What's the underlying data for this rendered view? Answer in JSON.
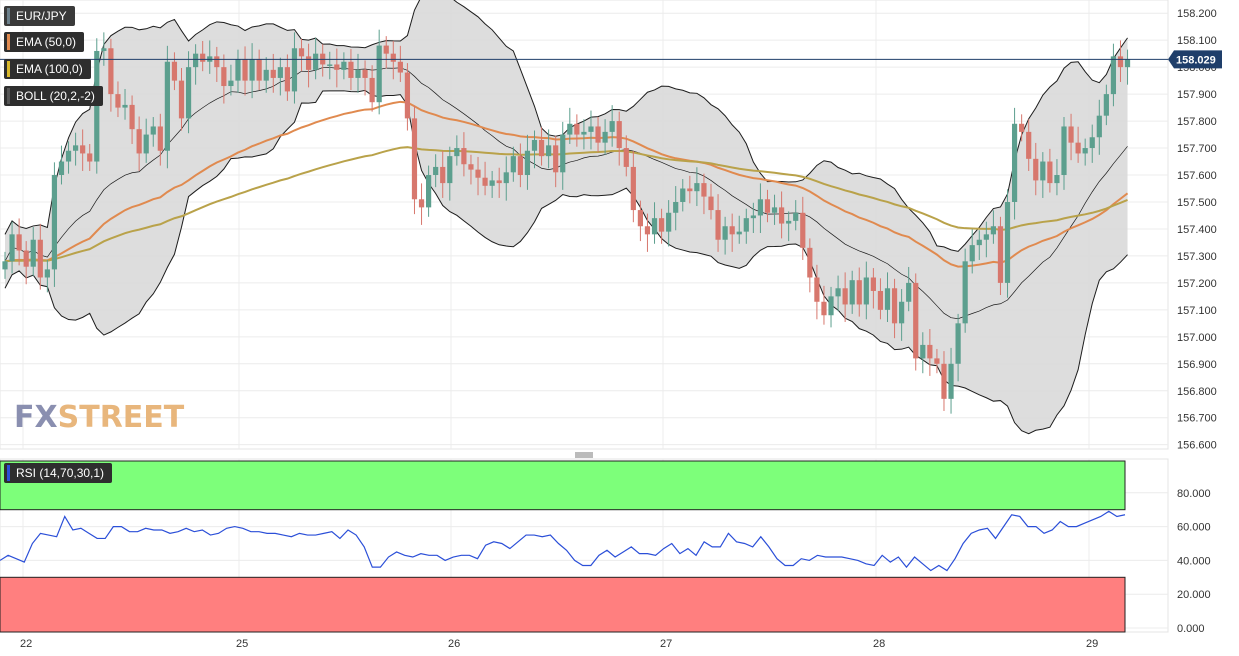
{
  "legend": {
    "symbol": "EUR/JPY",
    "ema50": "EMA (50,0)",
    "ema100": "EMA (100,0)",
    "boll": "BOLL (20,2,-2)",
    "rsi": "RSI (14,70,30,1)"
  },
  "logo": {
    "fx": "FX",
    "street": "STREET"
  },
  "colors": {
    "up": "#5c9f8e",
    "down": "#d7776d",
    "ema50": "#e08a4f",
    "ema100": "#b9a24a",
    "boll_band": "#d9d9d9",
    "boll_line": "#1c1c1c",
    "rsi_line": "#2b4fd8",
    "rsi_over": "#7dff7a",
    "rsi_under": "#ff7f7f",
    "price_line": "#1f3e6a"
  },
  "chart_data": {
    "type": "candlestick",
    "symbol": "EUR/JPY",
    "current_price": "158.029",
    "y_ticks": [
      "158.200",
      "158.100",
      "158.000",
      "157.900",
      "157.800",
      "157.700",
      "157.600",
      "157.500",
      "157.400",
      "157.300",
      "157.200",
      "157.100",
      "157.000",
      "156.900",
      "156.800",
      "156.700",
      "156.600"
    ],
    "ylim": [
      156.584,
      158.249
    ],
    "x_ticks": [
      "22",
      "25",
      "26",
      "27",
      "28",
      "29"
    ],
    "closes": [
      157.28,
      157.38,
      157.32,
      157.26,
      157.36,
      157.22,
      157.25,
      157.6,
      157.65,
      157.69,
      157.71,
      157.68,
      157.65,
      158.06,
      158.07,
      157.9,
      157.85,
      157.86,
      157.77,
      157.68,
      157.75,
      157.78,
      157.69,
      158.02,
      157.95,
      157.81,
      158.0,
      158.05,
      158.02,
      158.04,
      158.0,
      157.93,
      157.95,
      158.03,
      157.95,
      158.03,
      157.95,
      157.99,
      157.96,
      158.0,
      157.91,
      158.07,
      158.04,
      157.99,
      158.05,
      158.01,
      158.01,
      157.99,
      158.02,
      157.96,
      157.99,
      157.96,
      157.87,
      158.08,
      158.05,
      158.02,
      157.98,
      157.81,
      157.51,
      157.48,
      157.6,
      157.63,
      157.57,
      157.67,
      157.7,
      157.64,
      157.62,
      157.59,
      157.56,
      157.58,
      157.57,
      157.61,
      157.67,
      157.6,
      157.69,
      157.73,
      157.67,
      157.71,
      157.61,
      157.75,
      157.79,
      157.75,
      157.76,
      157.78,
      157.72,
      157.76,
      157.8,
      157.7,
      157.63,
      157.47,
      157.41,
      157.38,
      157.44,
      157.39,
      157.46,
      157.5,
      157.55,
      157.54,
      157.57,
      157.52,
      157.47,
      157.36,
      157.41,
      157.38,
      157.39,
      157.44,
      157.45,
      157.51,
      157.46,
      157.48,
      157.42,
      157.43,
      157.46,
      157.33,
      157.22,
      157.13,
      157.08,
      157.15,
      157.18,
      157.12,
      157.21,
      157.12,
      157.22,
      157.17,
      157.1,
      157.18,
      157.05,
      157.13,
      157.2,
      156.92,
      156.97,
      156.92,
      156.9,
      156.77,
      156.9,
      157.05,
      157.28,
      157.34,
      157.36,
      157.38,
      157.41,
      157.2,
      157.5,
      157.79,
      157.76,
      157.66,
      157.58,
      157.65,
      157.57,
      157.6,
      157.78,
      157.72,
      157.68,
      157.7,
      157.74,
      157.82,
      157.9,
      158.04,
      158.0,
      158.03
    ]
  },
  "rsi_data": {
    "y_ticks": [
      "80.000",
      "60.000",
      "40.000",
      "20.000",
      "0.000"
    ],
    "ylim": [
      0,
      100
    ],
    "overbought": 70,
    "oversold": 30,
    "values": [
      40,
      43,
      41,
      39,
      50,
      56,
      55,
      54,
      66,
      58,
      59,
      56,
      53,
      53,
      60,
      60,
      57,
      57,
      59,
      58,
      58,
      56,
      57,
      59,
      57,
      58,
      55,
      56,
      59,
      60,
      59,
      57,
      57,
      56,
      56,
      55,
      54,
      56,
      55,
      55,
      56,
      57,
      53,
      58,
      55,
      48,
      36,
      36,
      42,
      45,
      43,
      42,
      44,
      43,
      43,
      40,
      42,
      43,
      43,
      41,
      49,
      51,
      50,
      47,
      51,
      55,
      55,
      54,
      55,
      50,
      46,
      40,
      37,
      37,
      43,
      46,
      42,
      45,
      48,
      44,
      44,
      43,
      47,
      50,
      44,
      47,
      43,
      51,
      48,
      48,
      56,
      51,
      50,
      48,
      54,
      48,
      41,
      37,
      37,
      41,
      40,
      43,
      42,
      42,
      42,
      41,
      40,
      38,
      37,
      43,
      39,
      42,
      36,
      42,
      38,
      34,
      37,
      34,
      41,
      50,
      56,
      58,
      59,
      53,
      60,
      67,
      66,
      60,
      60,
      56,
      58,
      63,
      60,
      60,
      62,
      64,
      66,
      69,
      66,
      67
    ]
  }
}
